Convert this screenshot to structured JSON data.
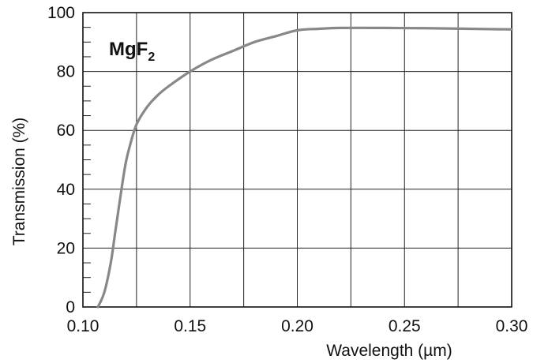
{
  "chart_data": {
    "type": "line",
    "title": "",
    "xlabel": "Wavelength (µm)",
    "ylabel": "Transmission (%)",
    "xlim": [
      0.1,
      0.3
    ],
    "ylim": [
      0,
      100
    ],
    "x_ticks": [
      0.1,
      0.15,
      0.2,
      0.25,
      0.3
    ],
    "x_tick_labels": [
      "0.10",
      "0.15",
      "0.20",
      "0.25",
      "0.30"
    ],
    "y_ticks": [
      0,
      20,
      40,
      60,
      80,
      100
    ],
    "y_tick_labels": [
      "0",
      "20",
      "40",
      "60",
      "80",
      "100"
    ],
    "grid": true,
    "annotation": {
      "text": "MgF",
      "subscript": "2"
    },
    "series": [
      {
        "color": "#888888",
        "x": [
          0.107,
          0.11,
          0.113,
          0.115,
          0.118,
          0.12,
          0.122,
          0.125,
          0.13,
          0.135,
          0.14,
          0.15,
          0.16,
          0.17,
          0.18,
          0.19,
          0.2,
          0.21,
          0.22,
          0.24,
          0.26,
          0.28,
          0.3
        ],
        "y": [
          0,
          5,
          15,
          25,
          40,
          49,
          55,
          62,
          68,
          72,
          75,
          80,
          84,
          87,
          90,
          92,
          94,
          94.5,
          94.8,
          94.8,
          94.7,
          94.5,
          94.3
        ]
      }
    ]
  }
}
